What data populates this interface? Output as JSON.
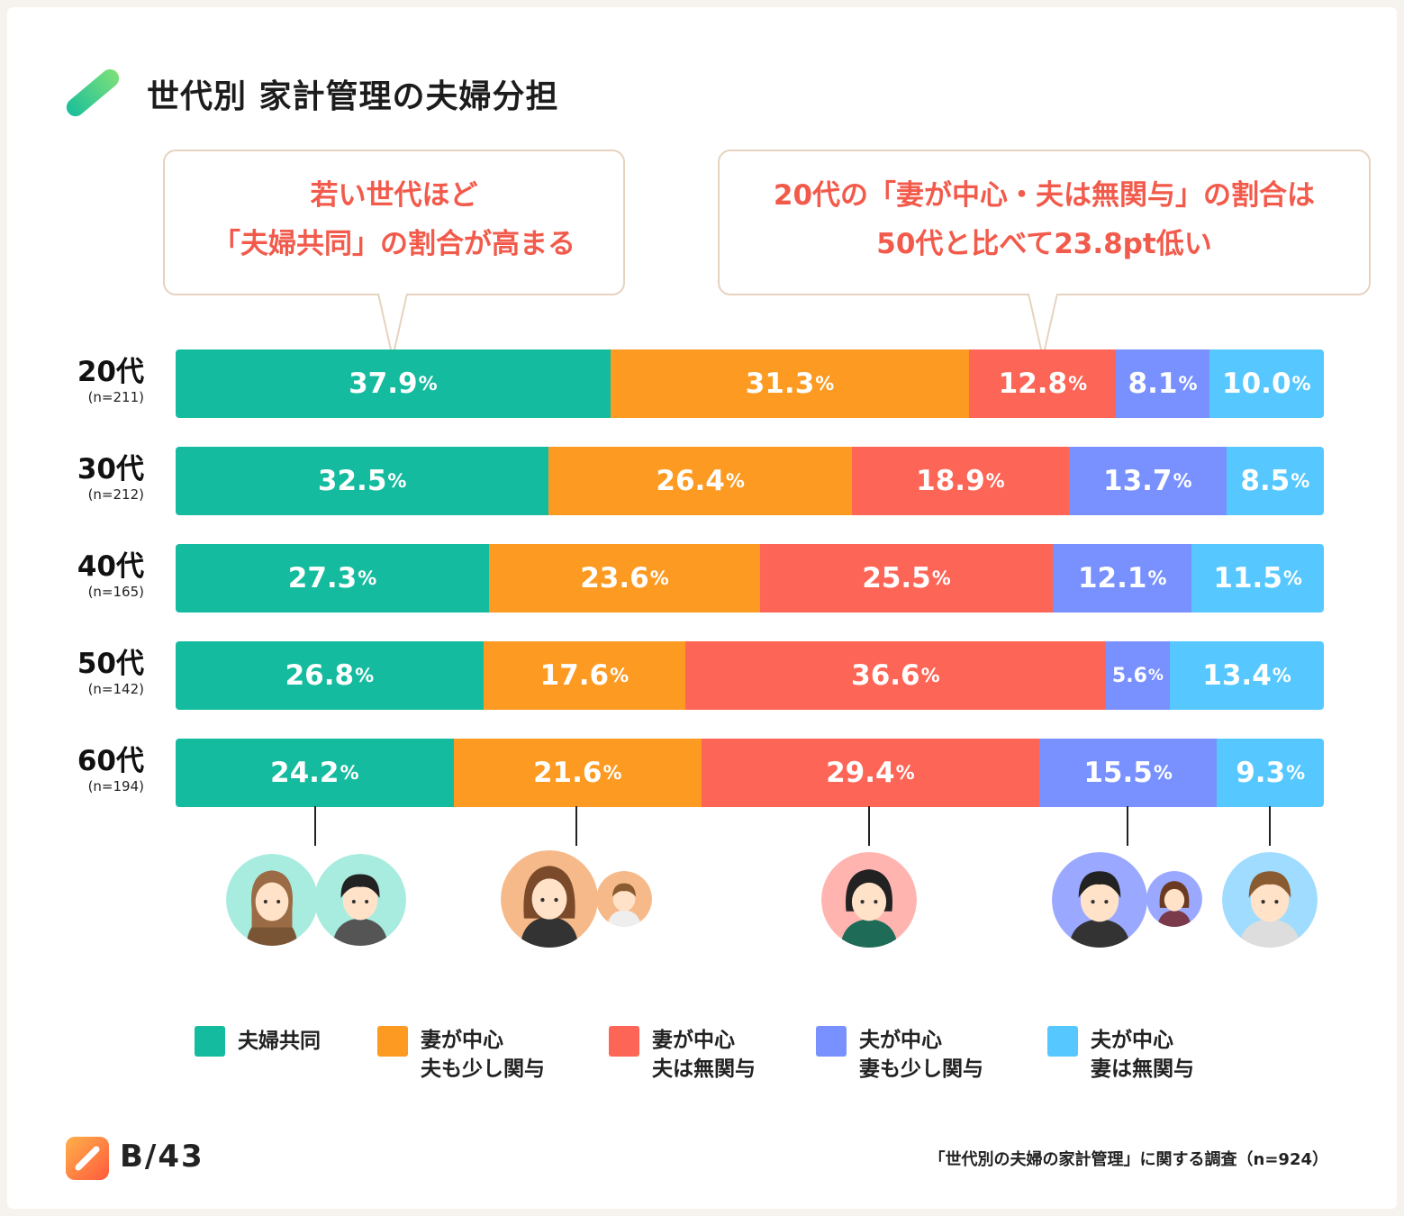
{
  "title": "世代別 家計管理の夫婦分担",
  "callouts": [
    {
      "lines": [
        "若い世代ほど",
        "「夫婦共同」の割合が高まる"
      ]
    },
    {
      "lines": [
        "20代の「妻が中心・夫は無関与」の割合は",
        "50代と比べて23.8pt低い"
      ]
    }
  ],
  "colors": {
    "joint": "#14bb9e",
    "wife_husband_little": "#fc9a22",
    "wife_husband_none": "#fd6556",
    "husband_wife_little": "#7891ff",
    "husband_wife_none": "#56c8ff"
  },
  "chart_data": {
    "type": "bar",
    "orientation": "horizontal-stacked-100",
    "categories": [
      "20代",
      "30代",
      "40代",
      "50代",
      "60代"
    ],
    "sample_sizes": [
      "(n=211)",
      "(n=212)",
      "(n=165)",
      "(n=142)",
      "(n=194)"
    ],
    "unit": "%",
    "series": [
      {
        "name": "夫婦共同",
        "values": [
          37.9,
          32.5,
          27.3,
          26.8,
          24.2
        ]
      },
      {
        "name": "妻が中心 夫も少し関与",
        "values": [
          31.3,
          26.4,
          23.6,
          17.6,
          21.6
        ]
      },
      {
        "name": "妻が中心 夫は無関与",
        "values": [
          12.8,
          18.9,
          25.5,
          36.6,
          29.4
        ]
      },
      {
        "name": "夫が中心 妻も少し関与",
        "values": [
          8.1,
          13.7,
          12.1,
          5.6,
          15.5
        ]
      },
      {
        "name": "夫が中心 妻は無関与",
        "values": [
          10.0,
          8.5,
          11.5,
          13.4,
          9.3
        ]
      }
    ]
  },
  "legend": [
    {
      "lines": [
        "夫婦共同"
      ],
      "color_key": "joint"
    },
    {
      "lines": [
        "妻が中心",
        "夫も少し関与"
      ],
      "color_key": "wife_husband_little"
    },
    {
      "lines": [
        "妻が中心",
        "夫は無関与"
      ],
      "color_key": "wife_husband_none"
    },
    {
      "lines": [
        "夫が中心",
        "妻も少し関与"
      ],
      "color_key": "husband_wife_little"
    },
    {
      "lines": [
        "夫が中心",
        "妻は無関与"
      ],
      "color_key": "husband_wife_none"
    }
  ],
  "avatars": [
    "couple-joint-illustration",
    "wife-main-husband-little-illustration",
    "wife-only-illustration",
    "husband-main-wife-little-illustration",
    "husband-only-illustration"
  ],
  "footer": {
    "logo_text": "B/43",
    "source": "「世代別の夫婦の家計管理」に関する調査（n=924）"
  }
}
